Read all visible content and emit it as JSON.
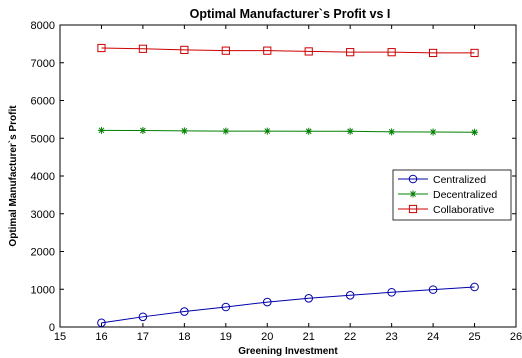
{
  "chart_data": {
    "type": "line",
    "title": "Optimal Manufacturer`s Profit vs I",
    "xlabel": "Greening Investment",
    "ylabel": "Optimal Manufacturer`s Profit",
    "xlim": [
      15,
      26
    ],
    "ylim": [
      0,
      8000
    ],
    "xticks": [
      15,
      16,
      17,
      18,
      19,
      20,
      21,
      22,
      23,
      24,
      25,
      26
    ],
    "yticks": [
      0,
      1000,
      2000,
      3000,
      4000,
      5000,
      6000,
      7000,
      8000
    ],
    "grid": false,
    "legend_position": "right",
    "x": [
      16,
      17,
      18,
      19,
      20,
      21,
      22,
      23,
      24,
      25
    ],
    "series": [
      {
        "name": "Centralized",
        "color": "#0000aa",
        "marker": "circle",
        "values": [
          110,
          270,
          410,
          530,
          660,
          760,
          840,
          920,
          990,
          1060
        ]
      },
      {
        "name": "Decentralized",
        "color": "#008000",
        "marker": "star",
        "values": [
          5210,
          5205,
          5195,
          5190,
          5190,
          5185,
          5185,
          5170,
          5165,
          5160
        ]
      },
      {
        "name": "Collaborative",
        "color": "#cc0000",
        "marker": "square",
        "values": [
          7390,
          7370,
          7340,
          7320,
          7320,
          7300,
          7280,
          7280,
          7260,
          7260
        ]
      }
    ]
  }
}
